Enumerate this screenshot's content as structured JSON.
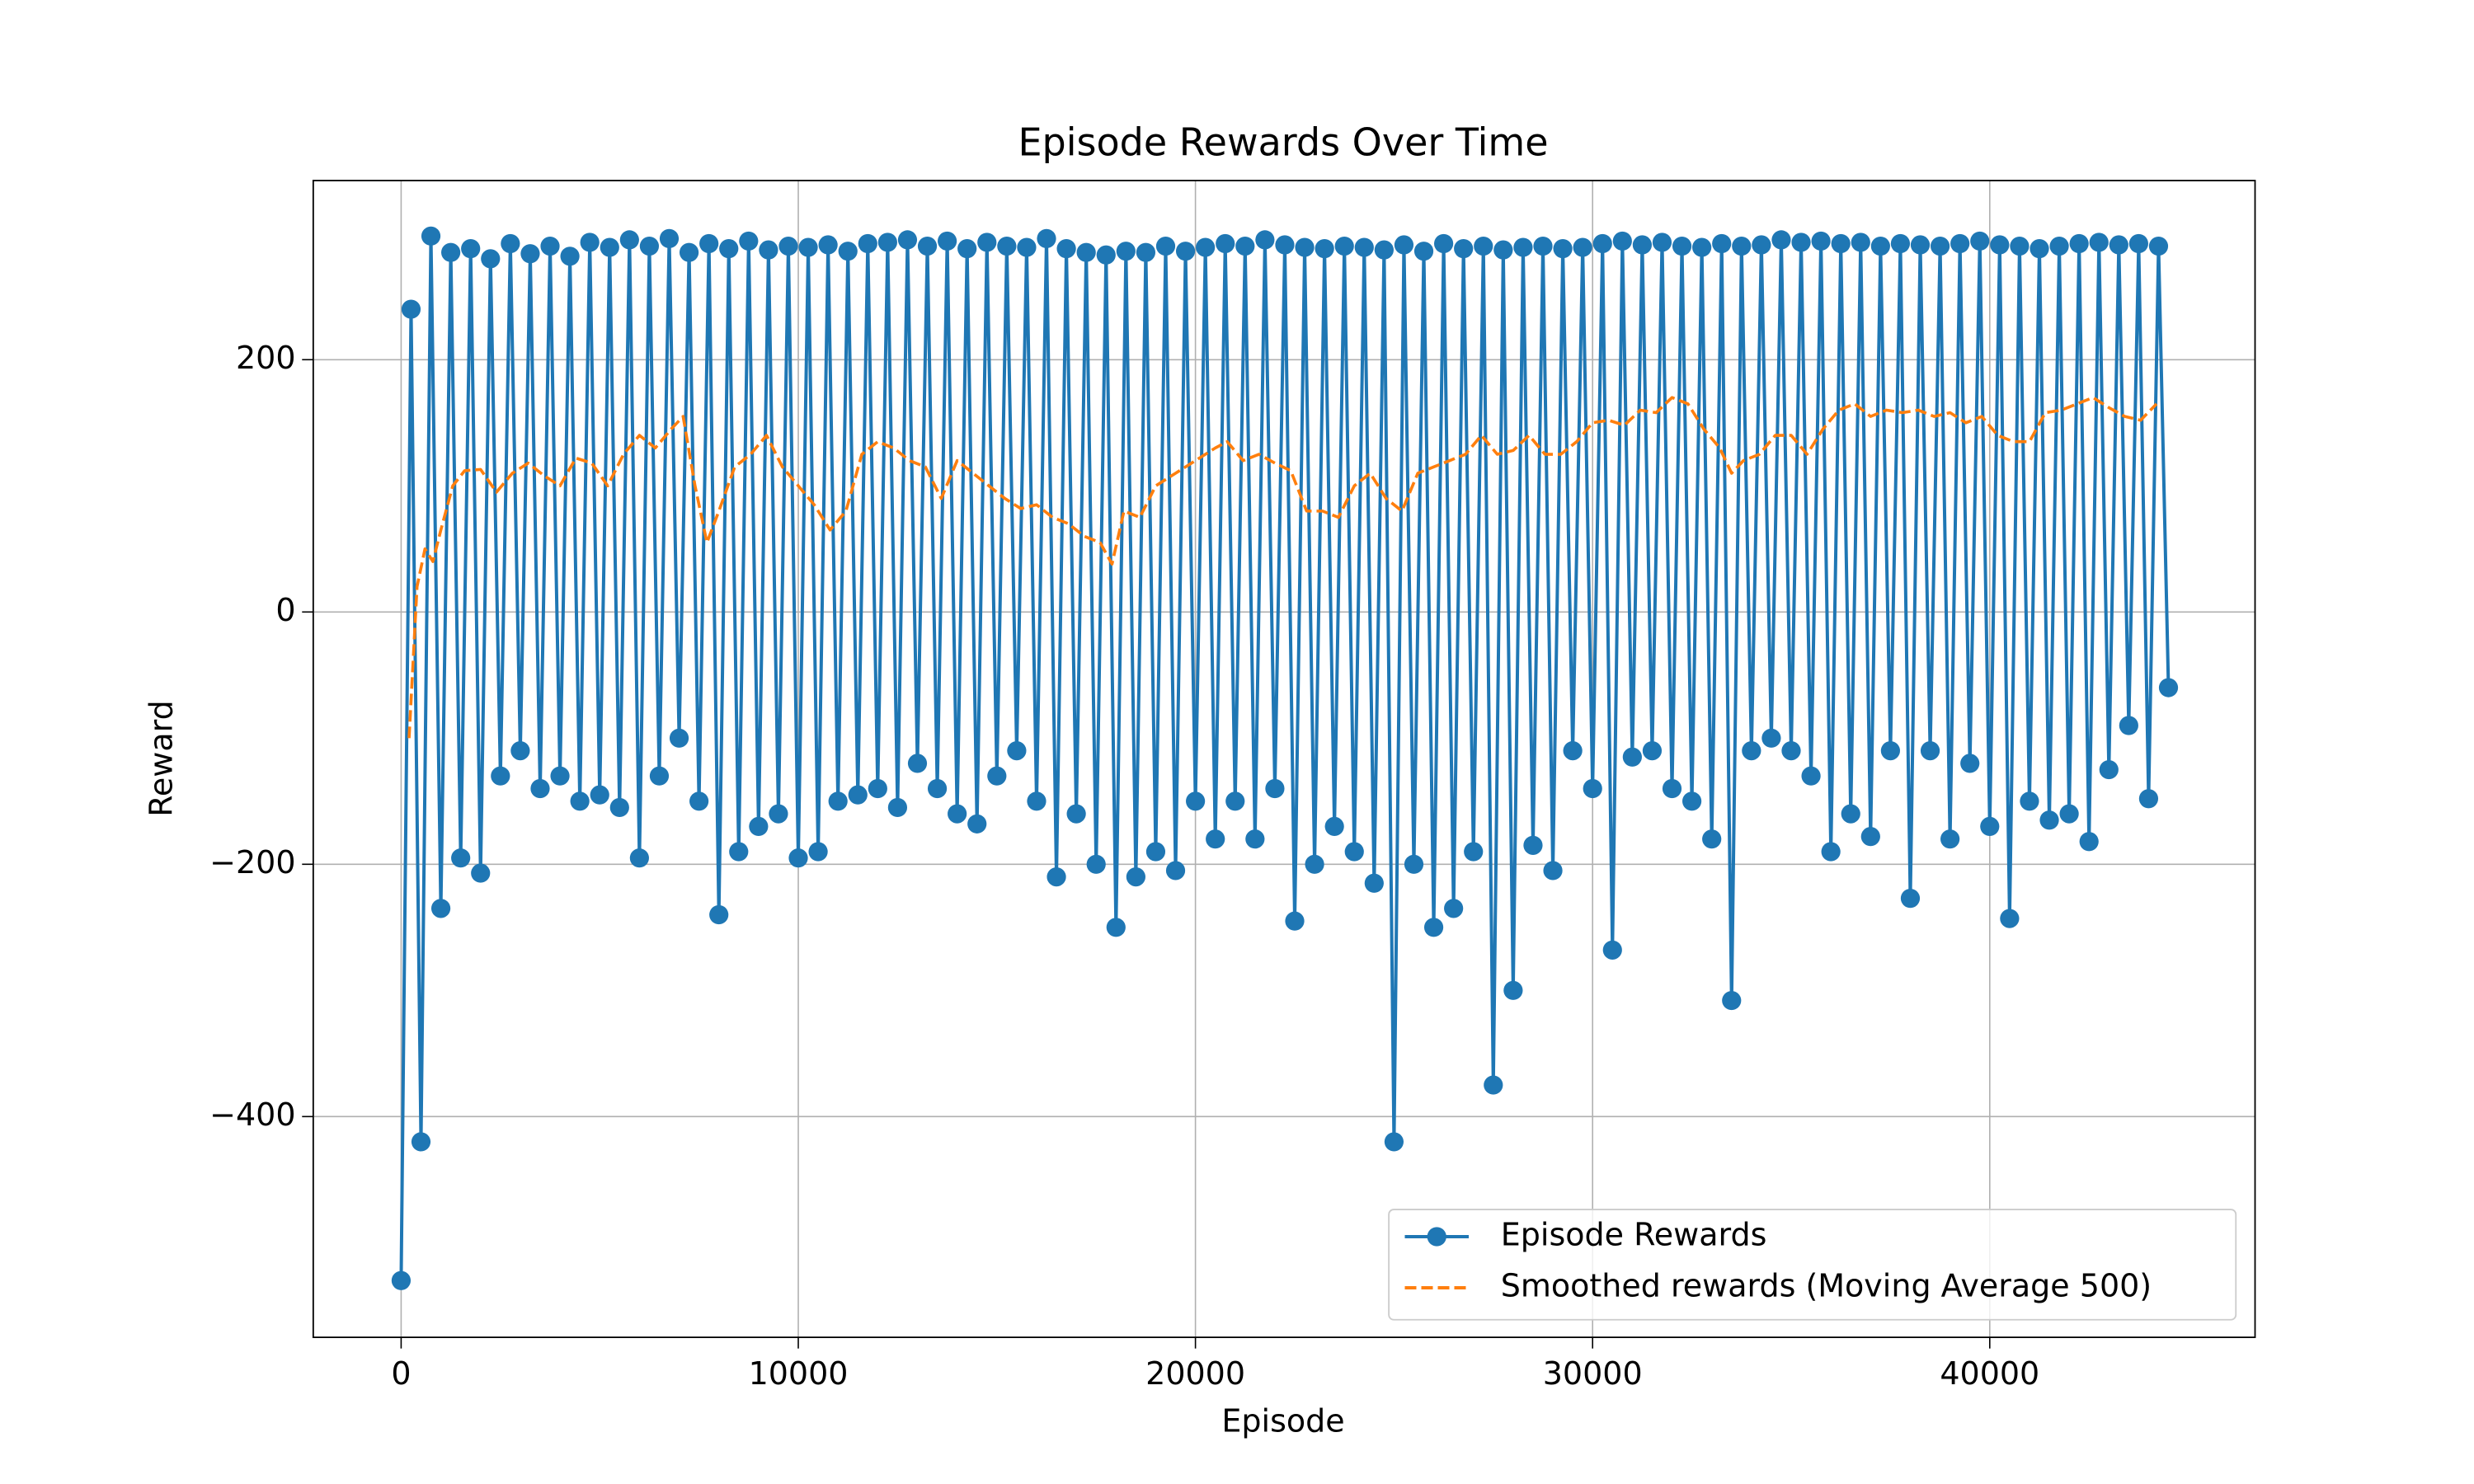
{
  "chart_data": {
    "type": "line",
    "title": "Episode Rewards Over Time",
    "x_label": "Episode",
    "y_label": "Reward",
    "xlim": [
      -2213,
      46680
    ],
    "ylim": [
      -575,
      342
    ],
    "xticks": [
      0,
      10000,
      20000,
      30000,
      40000
    ],
    "yticks": [
      {
        "value": -400,
        "label": "−400"
      },
      {
        "value": -200,
        "label": "−200"
      },
      0,
      200
    ],
    "grid": true,
    "legend": "lower right",
    "series": [
      {
        "name": "Episode Rewards",
        "color": "#1f77b4",
        "style": "solid-marker",
        "x": [
          0,
          250,
          500,
          750,
          1000,
          1250,
          1500,
          1750,
          2000,
          2250,
          2500,
          2750,
          3000,
          3250,
          3500,
          3750,
          4000,
          4250,
          4500,
          4750,
          5000,
          5250,
          5500,
          5750,
          6000,
          6250,
          6500,
          6750,
          7000,
          7250,
          7500,
          7750,
          8000,
          8250,
          8500,
          8750,
          9000,
          9250,
          9500,
          9750,
          10000,
          10250,
          10500,
          10750,
          11000,
          11250,
          11500,
          11750,
          12000,
          12250,
          12500,
          12750,
          13000,
          13250,
          13500,
          13750,
          14000,
          14250,
          14500,
          14750,
          15000,
          15250,
          15500,
          15750,
          16000,
          16250,
          16500,
          16750,
          17000,
          17250,
          17500,
          17750,
          18000,
          18250,
          18500,
          18750,
          19000,
          19250,
          19500,
          19750,
          20000,
          20250,
          20500,
          20750,
          21000,
          21250,
          21500,
          21750,
          22000,
          22250,
          22500,
          22750,
          23000,
          23250,
          23500,
          23750,
          24000,
          24250,
          24500,
          24750,
          25000,
          25250,
          25500,
          25750,
          26000,
          26250,
          26500,
          26750,
          27000,
          27250,
          27500,
          27750,
          28000,
          28250,
          28500,
          28750,
          29000,
          29250,
          29500,
          29750,
          30000,
          30250,
          30500,
          30750,
          31000,
          31250,
          31500,
          31750,
          32000,
          32250,
          32500,
          32750,
          33000,
          33250,
          33500,
          33750,
          34000,
          34250,
          34500,
          34750,
          35000,
          35250,
          35500,
          35750,
          36000,
          36250,
          36500,
          36750,
          37000,
          37250,
          37500,
          37750,
          38000,
          38250,
          38500,
          38750,
          39000,
          39250,
          39500,
          39750,
          40000,
          40250,
          40500,
          40750,
          41000,
          41250,
          41500,
          41750,
          42000,
          42250,
          42500,
          42750,
          43000,
          43250,
          43500,
          43750,
          44000,
          44250,
          44500
        ],
        "values": [
          -530,
          240,
          -420,
          298,
          -235,
          285,
          -195,
          288,
          -207,
          280,
          -130,
          292,
          -110,
          284,
          -140,
          290,
          -130,
          282,
          -150,
          293,
          -145,
          289,
          -155,
          295,
          -195,
          290,
          -130,
          296,
          -100,
          285,
          -150,
          292,
          -240,
          288,
          -190,
          294,
          -170,
          287,
          -160,
          290,
          -195,
          289,
          -190,
          291,
          -150,
          286,
          -145,
          292,
          -140,
          293,
          -155,
          295,
          -120,
          290,
          -140,
          294,
          -160,
          288,
          -168,
          293,
          -130,
          290,
          -110,
          289,
          -150,
          296,
          -210,
          288,
          -160,
          285,
          -200,
          283,
          -250,
          286,
          -210,
          285,
          -190,
          290,
          -205,
          286,
          -150,
          289,
          -180,
          292,
          -150,
          290,
          -180,
          295,
          -140,
          291,
          -245,
          289,
          -200,
          288,
          -170,
          290,
          -190,
          289,
          -215,
          287,
          -420,
          291,
          -200,
          286,
          -250,
          292,
          -235,
          288,
          -190,
          290,
          -375,
          287,
          -300,
          289,
          -185,
          290,
          -205,
          288,
          -110,
          289,
          -140,
          292,
          -268,
          294,
          -115,
          291,
          -110,
          293,
          -140,
          290,
          -150,
          289,
          -180,
          292,
          -308,
          290,
          -110,
          291,
          -100,
          295,
          -110,
          293,
          -130,
          294,
          -190,
          292,
          -160,
          293,
          -178,
          290,
          -110,
          292,
          -227,
          291,
          -110,
          290,
          -180,
          292,
          -120,
          294,
          -170,
          291,
          -243,
          290,
          -150,
          288,
          -165,
          290,
          -160,
          292,
          -182,
          293,
          -125,
          291,
          -90,
          292,
          -148,
          290,
          -60
        ]
      },
      {
        "name": "Smoothed rewards (Moving Average 500)",
        "color": "#ff7f0e",
        "style": "dashed",
        "x": [
          200,
          400,
          600,
          800,
          1000,
          1300,
          1600,
          2000,
          2400,
          2800,
          3200,
          3600,
          4000,
          4400,
          4800,
          5200,
          5600,
          6000,
          6400,
          6800,
          7100,
          7400,
          7700,
          8000,
          8400,
          8800,
          9200,
          9600,
          10000,
          10400,
          10800,
          11200,
          11600,
          12000,
          12400,
          12800,
          13200,
          13600,
          14000,
          14400,
          14800,
          15200,
          15600,
          16000,
          16400,
          16800,
          17200,
          17600,
          17900,
          18200,
          18600,
          19000,
          19500,
          20000,
          20500,
          20800,
          21200,
          21600,
          22000,
          22400,
          22800,
          23200,
          23600,
          24000,
          24400,
          24800,
          25200,
          25600,
          26000,
          26400,
          26800,
          27200,
          27600,
          28000,
          28400,
          28800,
          29200,
          29600,
          30000,
          30400,
          30800,
          31200,
          31600,
          32000,
          32400,
          32800,
          33200,
          33500,
          33800,
          34200,
          34600,
          35000,
          35400,
          35800,
          36200,
          36600,
          37000,
          37400,
          37800,
          38200,
          38600,
          39000,
          39400,
          39800,
          40200,
          40600,
          41000,
          41400,
          41800,
          42200,
          42600,
          43000,
          43400,
          43800,
          44200
        ],
        "values": [
          -100,
          20,
          50,
          40,
          65,
          100,
          112,
          113,
          95,
          110,
          118,
          108,
          100,
          122,
          118,
          100,
          125,
          140,
          130,
          145,
          155,
          100,
          55,
          80,
          115,
          125,
          140,
          115,
          100,
          85,
          65,
          80,
          125,
          135,
          130,
          120,
          115,
          90,
          120,
          110,
          100,
          90,
          82,
          85,
          75,
          70,
          60,
          55,
          38,
          80,
          75,
          100,
          110,
          120,
          130,
          135,
          120,
          125,
          118,
          112,
          80,
          80,
          75,
          100,
          110,
          90,
          80,
          110,
          115,
          120,
          125,
          140,
          125,
          128,
          140,
          125,
          125,
          135,
          150,
          152,
          148,
          160,
          158,
          170,
          165,
          145,
          130,
          110,
          120,
          125,
          140,
          140,
          125,
          145,
          160,
          165,
          155,
          160,
          158,
          160,
          155,
          158,
          150,
          155,
          140,
          135,
          135,
          158,
          160,
          165,
          170,
          162,
          155,
          152,
          165
        ]
      }
    ]
  }
}
